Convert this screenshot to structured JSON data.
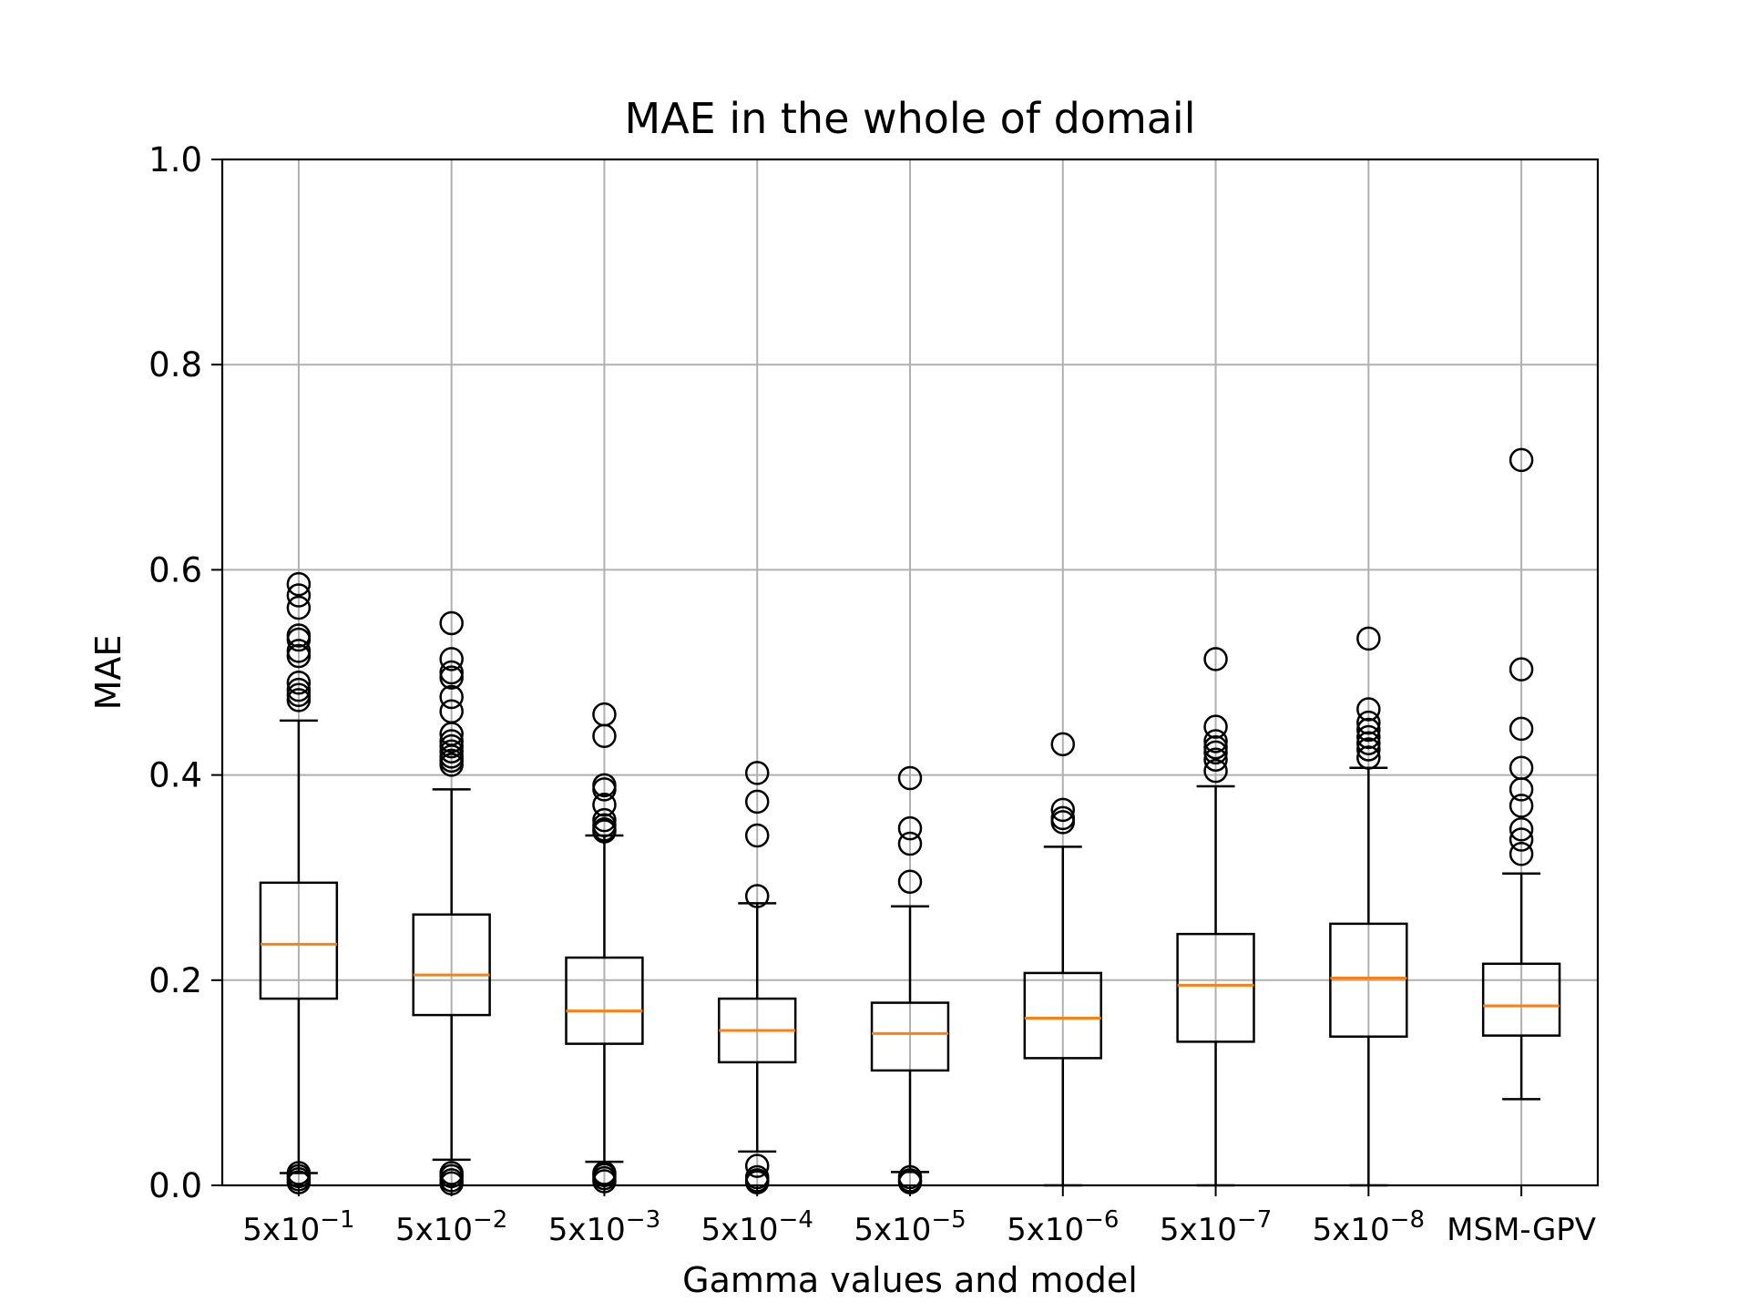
{
  "chart_data": {
    "type": "box",
    "title": "MAE in the whole of domail",
    "xlabel": "Gamma values and model",
    "ylabel": "MAE",
    "ylim": [
      0.0,
      1.0
    ],
    "yticks": [
      "0.0",
      "0.2",
      "0.4",
      "0.6",
      "0.8",
      "1.0"
    ],
    "grid": true,
    "colors": {
      "box": "#000000",
      "median": "#ff7f0e",
      "grid": "#b0b0b0"
    },
    "categories": [
      {
        "base": "5x10",
        "exp": "−1",
        "label": ""
      },
      {
        "base": "5x10",
        "exp": "−2",
        "label": ""
      },
      {
        "base": "5x10",
        "exp": "−3",
        "label": ""
      },
      {
        "base": "5x10",
        "exp": "−4",
        "label": ""
      },
      {
        "base": "5x10",
        "exp": "−5",
        "label": ""
      },
      {
        "base": "5x10",
        "exp": "−6",
        "label": ""
      },
      {
        "base": "5x10",
        "exp": "−7",
        "label": ""
      },
      {
        "base": "5x10",
        "exp": "−8",
        "label": ""
      },
      {
        "base": "",
        "exp": "",
        "label": "MSM-GPV"
      }
    ],
    "boxes": [
      {
        "whisker_low": 0.012,
        "q1": 0.182,
        "median": 0.235,
        "q3": 0.295,
        "whisker_high": 0.453,
        "outliers": [
          0.586,
          0.575,
          0.563,
          0.536,
          0.532,
          0.521,
          0.516,
          0.49,
          0.483,
          0.478,
          0.473,
          0.012,
          0.009,
          0.006,
          0.003
        ]
      },
      {
        "whisker_low": 0.025,
        "q1": 0.166,
        "median": 0.205,
        "q3": 0.264,
        "whisker_high": 0.386,
        "outliers": [
          0.548,
          0.513,
          0.5,
          0.495,
          0.476,
          0.462,
          0.44,
          0.433,
          0.428,
          0.423,
          0.418,
          0.414,
          0.41,
          0.012,
          0.009,
          0.005,
          0.002
        ]
      },
      {
        "whisker_low": 0.023,
        "q1": 0.138,
        "median": 0.17,
        "q3": 0.222,
        "whisker_high": 0.341,
        "outliers": [
          0.459,
          0.438,
          0.39,
          0.386,
          0.371,
          0.356,
          0.351,
          0.347,
          0.345,
          0.012,
          0.01,
          0.007,
          0.004
        ]
      },
      {
        "whisker_low": 0.033,
        "q1": 0.12,
        "median": 0.151,
        "q3": 0.182,
        "whisker_high": 0.275,
        "outliers": [
          0.402,
          0.374,
          0.341,
          0.282,
          0.019,
          0.008,
          0.005,
          0.003
        ]
      },
      {
        "whisker_low": 0.013,
        "q1": 0.112,
        "median": 0.148,
        "q3": 0.178,
        "whisker_high": 0.272,
        "outliers": [
          0.397,
          0.348,
          0.333,
          0.296,
          0.008,
          0.005,
          0.003
        ]
      },
      {
        "whisker_low": 0.0,
        "q1": 0.124,
        "median": 0.163,
        "q3": 0.207,
        "whisker_high": 0.33,
        "outliers": [
          0.43,
          0.366,
          0.358,
          0.354
        ]
      },
      {
        "whisker_low": 0.0,
        "q1": 0.14,
        "median": 0.195,
        "q3": 0.245,
        "whisker_high": 0.389,
        "outliers": [
          0.513,
          0.447,
          0.433,
          0.427,
          0.422,
          0.415,
          0.404
        ]
      },
      {
        "whisker_low": 0.0,
        "q1": 0.145,
        "median": 0.202,
        "q3": 0.255,
        "whisker_high": 0.407,
        "outliers": [
          0.533,
          0.464,
          0.451,
          0.444,
          0.437,
          0.431,
          0.425,
          0.417
        ]
      },
      {
        "whisker_low": 0.084,
        "q1": 0.146,
        "median": 0.175,
        "q3": 0.216,
        "whisker_high": 0.304,
        "outliers": [
          0.707,
          0.503,
          0.445,
          0.407,
          0.386,
          0.37,
          0.347,
          0.337,
          0.323
        ]
      }
    ]
  }
}
